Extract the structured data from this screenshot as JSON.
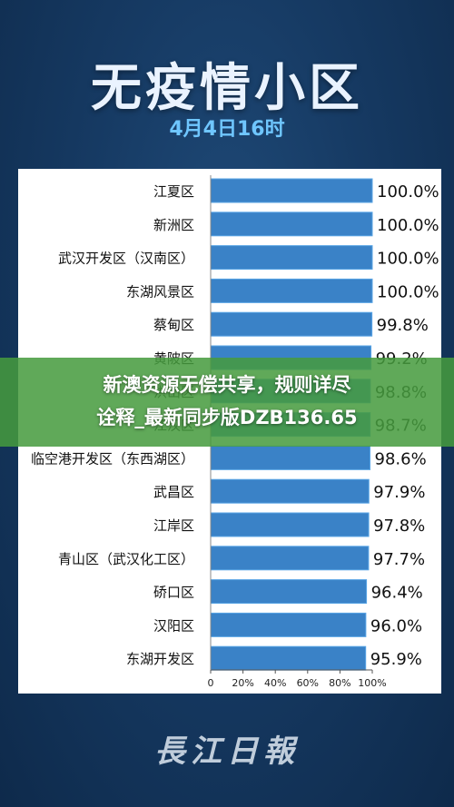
{
  "title": "无疫情小区",
  "subtitle": "4月4日16时",
  "overlay": {
    "line1": "新澳资源无偿共享，规则详尽",
    "line2": "诠释_最新同步版DZB136.65"
  },
  "logo": "長江日報",
  "colors": {
    "bar": "#3a82c7",
    "bar_edge": "#5aa6e6",
    "text": "#111111",
    "plot_bg": "#ffffff"
  },
  "chart_data": {
    "type": "bar",
    "orientation": "horizontal",
    "title": "无疫情小区",
    "subtitle": "4月4日16时",
    "categories": [
      "江夏区",
      "新洲区",
      "武汉开发区（汉南区）",
      "东湖风景区",
      "蔡甸区",
      "黄陂区",
      "洪山区",
      "江汉区",
      "临空港开发区（东西湖区）",
      "武昌区",
      "江岸区",
      "青山区（武汉化工区）",
      "硚口区",
      "汉阳区",
      "东湖开发区"
    ],
    "values": [
      100.0,
      100.0,
      100.0,
      100.0,
      99.8,
      99.2,
      98.8,
      98.7,
      98.6,
      97.9,
      97.8,
      97.7,
      96.4,
      96.0,
      95.9
    ],
    "value_labels": [
      "100.0%",
      "100.0%",
      "100.0%",
      "100.0%",
      "99.8%",
      "99.2%",
      "98.8%",
      "98.7%",
      "98.6%",
      "97.9%",
      "97.8%",
      "97.7%",
      "96.4%",
      "96.0%",
      "95.9%"
    ],
    "xlim": [
      0,
      100
    ],
    "xticks": [
      "0",
      "20%",
      "40%",
      "60%",
      "80%",
      "100%"
    ],
    "grid": false,
    "legend": "none"
  }
}
